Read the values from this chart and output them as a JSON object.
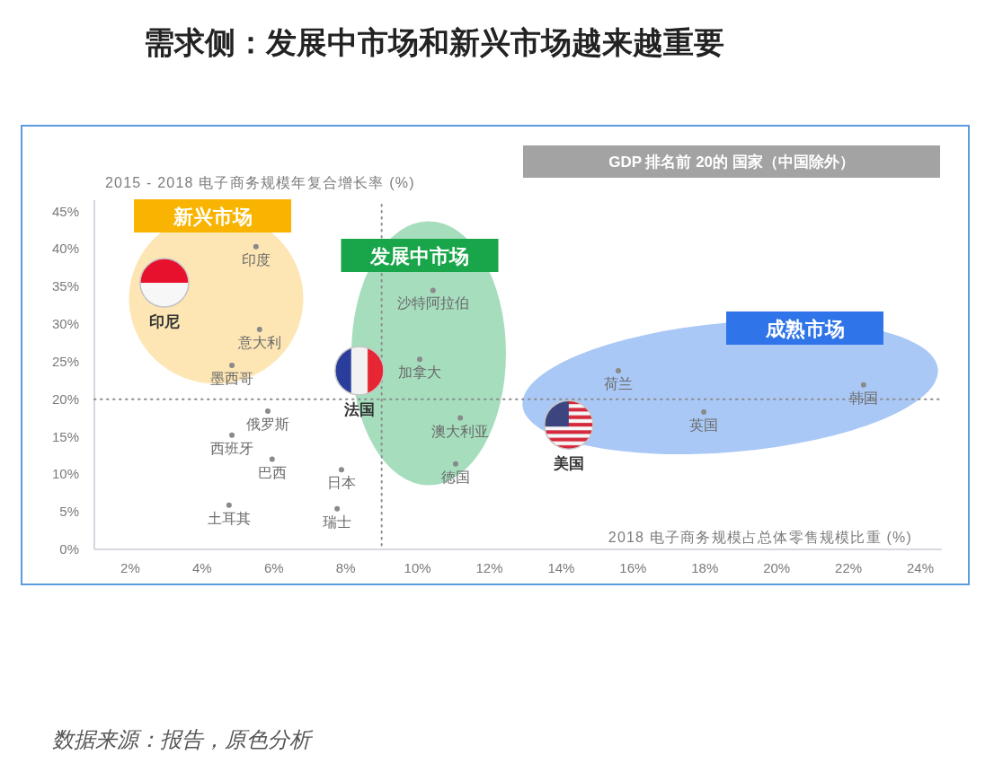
{
  "chart_data": {
    "type": "scatter",
    "title": "需求侧：发展中市场和新兴市场越来越重要",
    "subtitle": "GDP 排名前 20的 国家（中国除外）",
    "xlabel": "2018 电子商务规模占总体零售规模比重 (%)",
    "ylabel": "2015 - 2018 电子商务规模年复合增长率 (%)",
    "xlim": [
      1,
      24.6
    ],
    "ylim": [
      0,
      46.5
    ],
    "xticks": [
      {
        "value": 2,
        "label": "2%"
      },
      {
        "value": 4,
        "label": "4%"
      },
      {
        "value": 6,
        "label": "6%"
      },
      {
        "value": 8,
        "label": "8%"
      },
      {
        "value": 10,
        "label": "10%"
      },
      {
        "value": 12,
        "label": "12%"
      },
      {
        "value": 14,
        "label": "14%"
      },
      {
        "value": 16,
        "label": "16%"
      },
      {
        "value": 18,
        "label": "18%"
      },
      {
        "value": 20,
        "label": "20%"
      },
      {
        "value": 22,
        "label": "22%"
      },
      {
        "value": 24,
        "label": "24%"
      }
    ],
    "yticks": [
      {
        "value": 0,
        "label": "0%"
      },
      {
        "value": 5,
        "label": "5%"
      },
      {
        "value": 10,
        "label": "10%"
      },
      {
        "value": 15,
        "label": "15%"
      },
      {
        "value": 20,
        "label": "20%"
      },
      {
        "value": 25,
        "label": "25%"
      },
      {
        "value": 30,
        "label": "30%"
      },
      {
        "value": 35,
        "label": "35%"
      },
      {
        "value": 40,
        "label": "40%"
      },
      {
        "value": 45,
        "label": "45%"
      }
    ],
    "marker": "circle",
    "ref_lines": [
      {
        "axis": "x",
        "value": 9,
        "color": "#8c8c8c",
        "line_style": "dotted"
      },
      {
        "axis": "y",
        "value": 20,
        "color": "#8c8c8c",
        "line_style": "dotted"
      }
    ],
    "annotations": [
      "新兴市场",
      "发展中市场",
      "成熟市场",
      "数据来源：报告，原色分析"
    ],
    "series": [
      {
        "name": "印度",
        "x": [
          5.5
        ],
        "values": [
          40.3
        ]
      },
      {
        "name": "印尼",
        "type": "bubble",
        "x": [
          2.95
        ],
        "values": [
          35.5
        ],
        "sizes": [
          1
        ]
      },
      {
        "name": "意大利",
        "x": [
          5.6
        ],
        "values": [
          29.3
        ]
      },
      {
        "name": "墨西哥",
        "x": [
          4.83
        ],
        "values": [
          24.5
        ]
      },
      {
        "name": "俄罗斯",
        "x": [
          5.83
        ],
        "values": [
          18.4
        ]
      },
      {
        "name": "西班牙",
        "x": [
          4.83
        ],
        "values": [
          15.2
        ]
      },
      {
        "name": "巴西",
        "x": [
          5.95
        ],
        "values": [
          12.0
        ]
      },
      {
        "name": "日本",
        "x": [
          7.88
        ],
        "values": [
          10.6
        ]
      },
      {
        "name": "土耳其",
        "x": [
          4.75
        ],
        "values": [
          5.9
        ]
      },
      {
        "name": "瑞士",
        "x": [
          7.76
        ],
        "values": [
          5.4
        ]
      },
      {
        "name": "法国",
        "type": "bubble",
        "x": [
          8.38
        ],
        "values": [
          23.8
        ],
        "sizes": [
          1
        ]
      },
      {
        "name": "沙特阿拉伯",
        "x": [
          10.43
        ],
        "values": [
          34.5
        ]
      },
      {
        "name": "加拿大",
        "x": [
          10.06
        ],
        "values": [
          25.3
        ]
      },
      {
        "name": "澳大利亚",
        "x": [
          11.19
        ],
        "values": [
          17.5
        ]
      },
      {
        "name": "德国",
        "x": [
          11.06
        ],
        "values": [
          11.4
        ]
      },
      {
        "name": "美国",
        "type": "bubble",
        "x": [
          14.21
        ],
        "values": [
          16.6
        ],
        "sizes": [
          1
        ]
      },
      {
        "name": "荷兰",
        "x": [
          15.59
        ],
        "values": [
          23.8
        ]
      },
      {
        "name": "英国",
        "x": [
          17.97
        ],
        "values": [
          18.3
        ]
      },
      {
        "name": "韩国",
        "x": [
          22.42
        ],
        "values": [
          21.9
        ]
      }
    ]
  }
}
